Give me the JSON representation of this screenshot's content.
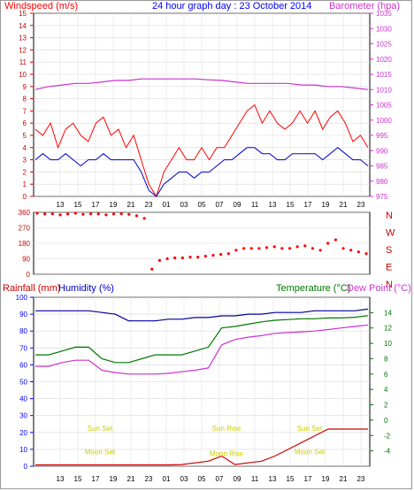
{
  "header": {
    "left_label": "Windspeed (m/s)",
    "center_label": "24 hour graph day : 23 October 2014",
    "right_label": "Barometer (hpa)"
  },
  "colors": {
    "windspeed": "#ff0000",
    "wind_avg": "#0000cc",
    "barometer": "#cc33cc",
    "direction": "#ff0000",
    "humidity": "#000099",
    "temperature": "#007700",
    "dewpoint": "#cc33cc",
    "rainfall": "#cc0000",
    "annotation": "#cccc00",
    "axis_blue": "#0000ff",
    "axis_red": "#cc0000"
  },
  "chart_data": [
    {
      "type": "line",
      "name": "wind-barometer",
      "left_ylim": [
        0,
        15
      ],
      "left_ticks": [
        0,
        1,
        2,
        3,
        4,
        5,
        6,
        7,
        8,
        9,
        10,
        11,
        12,
        13,
        14,
        15
      ],
      "right_ylim": [
        975,
        1035
      ],
      "right_ticks": [
        975,
        980,
        985,
        990,
        995,
        1000,
        1005,
        1010,
        1015,
        1020,
        1025,
        1030,
        1035
      ],
      "x_tick_labels": [
        "13",
        "15",
        "17",
        "19",
        "21",
        "23",
        "01",
        "03",
        "05",
        "07",
        "09",
        "11",
        "13",
        "15",
        "17",
        "19",
        "21",
        "23"
      ],
      "barometer": [
        1010,
        1011,
        1011.5,
        1012,
        1012,
        1012.5,
        1013,
        1013,
        1013.5,
        1013.5,
        1013.5,
        1013.5,
        1013.5,
        1013.2,
        1013,
        1012.5,
        1012,
        1012,
        1012,
        1012,
        1011.5,
        1011.5,
        1011,
        1011,
        1010.5,
        1010
      ],
      "wind_gust": [
        5.5,
        5,
        6,
        4,
        5.5,
        6,
        5,
        4.5,
        6,
        6.5,
        5,
        5.5,
        4,
        5,
        3,
        1,
        0,
        2,
        3,
        4,
        3,
        3,
        4,
        3,
        4,
        4,
        5,
        6,
        7,
        7.5,
        6,
        7,
        6,
        5.5,
        6,
        7,
        6,
        7,
        5.5,
        6.5,
        7,
        6,
        4.5,
        5,
        4
      ],
      "wind_avg": [
        3,
        3.5,
        3,
        3,
        3.5,
        3,
        2.5,
        3,
        3,
        3.5,
        3,
        3,
        3,
        3,
        2,
        0.5,
        0,
        1,
        1.5,
        2,
        2,
        1.5,
        2,
        2,
        2.5,
        3,
        3,
        3.5,
        4,
        4,
        3.5,
        3.5,
        3,
        3,
        3.5,
        3.5,
        3.5,
        3.5,
        3,
        3.5,
        4,
        3.5,
        3,
        3,
        2.5
      ]
    },
    {
      "type": "scatter",
      "name": "wind-direction",
      "ylim": [
        0,
        360
      ],
      "y_ticks": [
        0,
        90,
        180,
        270,
        360
      ],
      "compass_labels": [
        "N",
        "W",
        "S",
        "E",
        "N"
      ],
      "values": [
        355,
        350,
        352,
        345,
        350,
        355,
        348,
        352,
        350,
        345,
        350,
        352,
        348,
        340,
        325,
        30,
        80,
        90,
        95,
        95,
        100,
        100,
        105,
        110,
        115,
        120,
        140,
        150,
        150,
        150,
        155,
        160,
        150,
        150,
        160,
        165,
        150,
        140,
        180,
        200,
        150,
        140,
        130,
        120
      ]
    },
    {
      "type": "line",
      "name": "humidity-temp-rain",
      "left_label": "Rainfall (mm)",
      "humidity_label": "Humidity (%)",
      "temperature_label": "Temperature (°C)",
      "dewpoint_label": "Dew Point (°C)",
      "left_ylim": [
        0,
        100
      ],
      "left_ticks": [
        0,
        10,
        20,
        30,
        40,
        50,
        60,
        70,
        80,
        90,
        100
      ],
      "right_ylim": [
        -6,
        16
      ],
      "right_ticks": [
        -4,
        -2,
        0,
        2,
        4,
        6,
        8,
        10,
        12,
        14
      ],
      "annotations": [
        {
          "text": "Sun Set",
          "x_hour": 17.5,
          "y": 21
        },
        {
          "text": "Moon Set",
          "x_hour": 17.5,
          "y": 7
        },
        {
          "text": "Sun Rise",
          "x_hour": 7.8,
          "y": 21
        },
        {
          "text": "Moon Rise",
          "x_hour": 7.8,
          "y": 6
        },
        {
          "text": "Sun Set",
          "x_hour": 17.2,
          "y": 21
        },
        {
          "text": "Moon Set",
          "x_hour": 17.2,
          "y": 7
        }
      ],
      "humidity": [
        92,
        92,
        92,
        92,
        92,
        91,
        90,
        86,
        86,
        86,
        87,
        87,
        88,
        88,
        89,
        89,
        90,
        90,
        91,
        91,
        91,
        92,
        92,
        92,
        92,
        93
      ],
      "temperature": [
        8.5,
        8.5,
        9,
        9.5,
        9.5,
        8,
        7.5,
        7.5,
        8,
        8.5,
        8.5,
        8.5,
        9,
        9.5,
        12,
        12.2,
        12.5,
        12.8,
        13,
        13.1,
        13.2,
        13.2,
        13.3,
        13.3,
        13.4,
        13.6
      ],
      "dewpoint": [
        7,
        7,
        7.5,
        7.8,
        7.8,
        6.5,
        6.2,
        6,
        6,
        6,
        6.1,
        6.3,
        6.5,
        6.8,
        9.8,
        10.5,
        10.8,
        11,
        11.3,
        11.4,
        11.5,
        11.6,
        11.8,
        12,
        12.2,
        12.4
      ],
      "rainfall": [
        0.8,
        0.8,
        0.8,
        0.8,
        0.8,
        0.8,
        0.8,
        0.8,
        0.8,
        0.8,
        0.8,
        1,
        2,
        3,
        6,
        1,
        2,
        3,
        6,
        10,
        14,
        18,
        22,
        22,
        22,
        22
      ]
    }
  ]
}
